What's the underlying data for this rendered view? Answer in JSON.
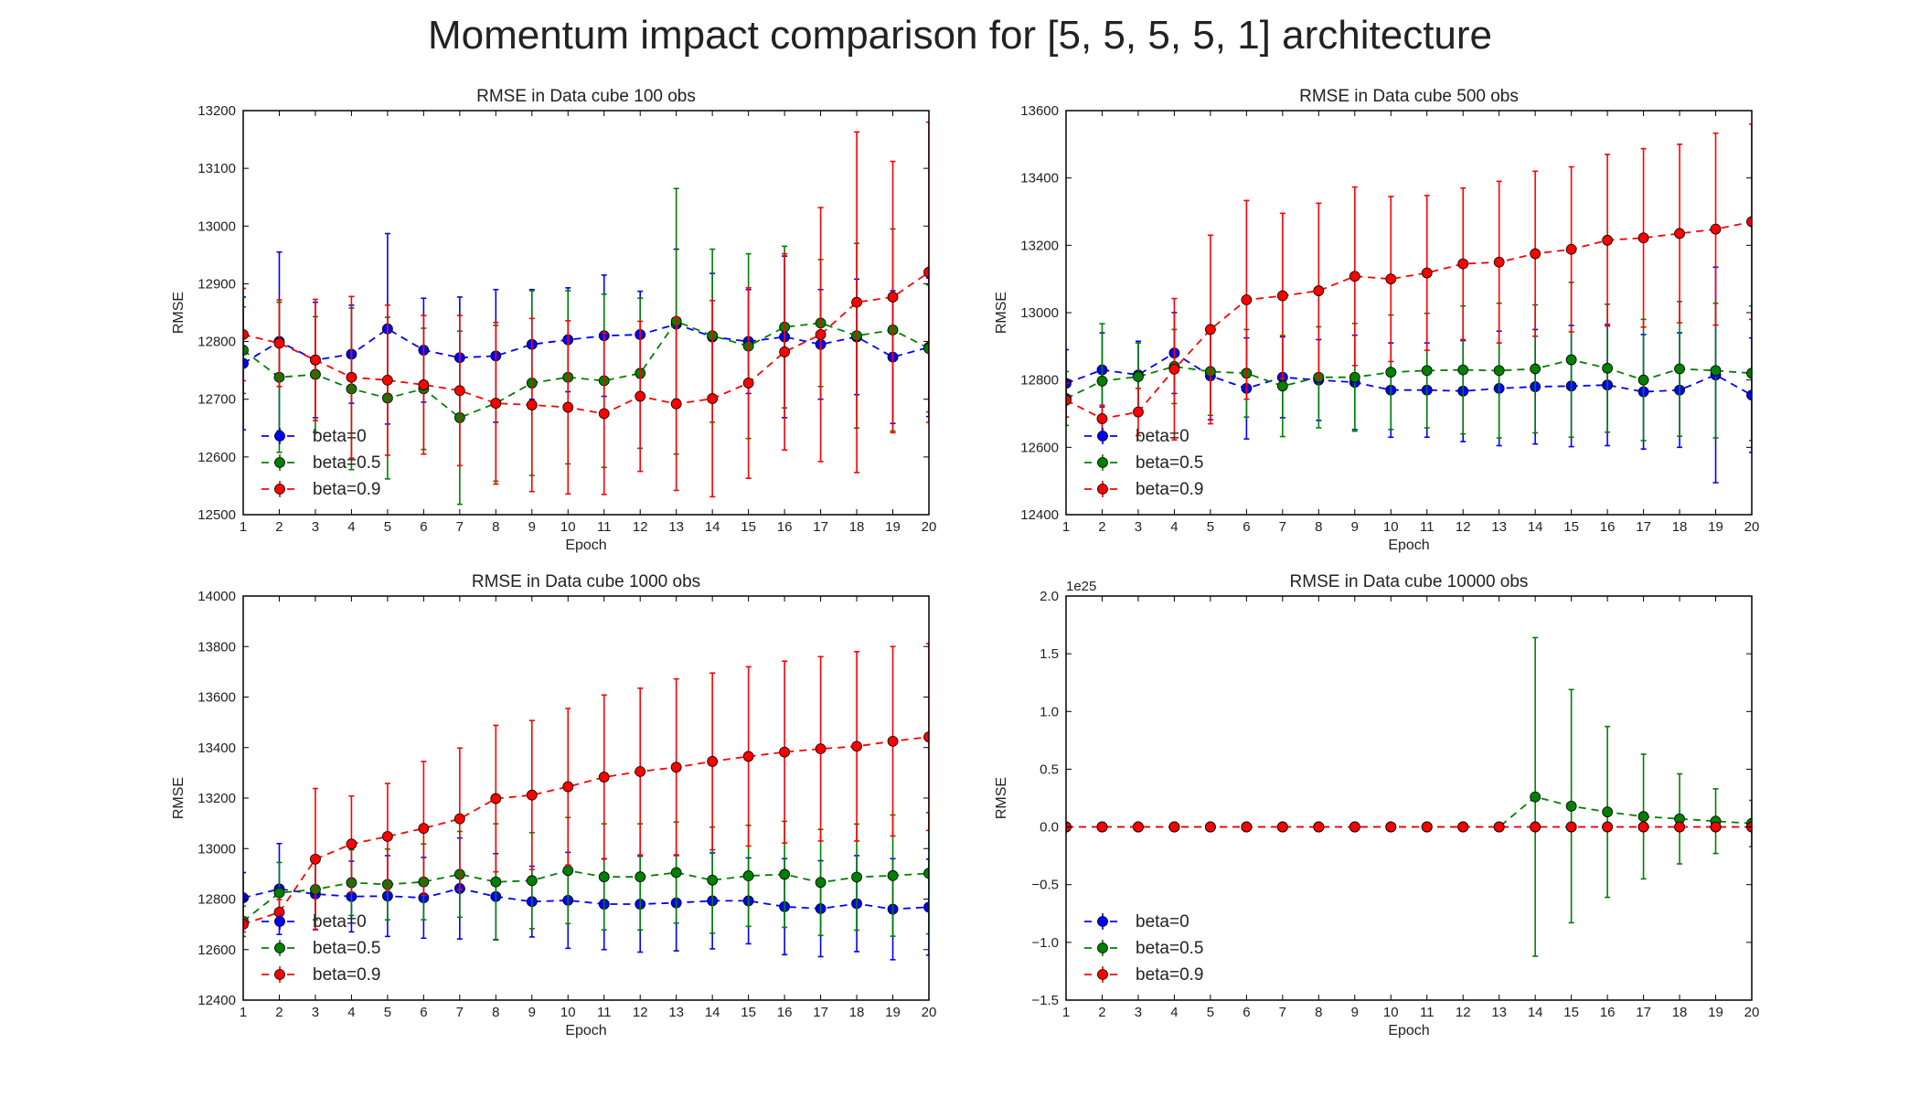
{
  "figure": {
    "title": "Momentum impact comparison for [5, 5, 5, 5, 1] architecture"
  },
  "colors": {
    "beta0": "#0000ff",
    "beta05": "#008000",
    "beta09": "#ff0000"
  },
  "chart_data": [
    {
      "type": "line",
      "title": "RMSE in Data cube 100 obs",
      "xlabel": "Epoch",
      "ylabel": "RMSE",
      "xlim": [
        1,
        20
      ],
      "ylim": [
        12500,
        13200
      ],
      "yticks": [
        12500,
        12600,
        12700,
        12800,
        12900,
        13000,
        13100,
        13200
      ],
      "ytick_labels": [
        "12500",
        "12600",
        "12700",
        "12800",
        "12900",
        "13000",
        "13100",
        "13200"
      ],
      "y_offset_label": "",
      "legend": "lower-left",
      "x": [
        1,
        2,
        3,
        4,
        5,
        6,
        7,
        8,
        9,
        10,
        11,
        12,
        13,
        14,
        15,
        16,
        17,
        18,
        19,
        20
      ],
      "series": [
        {
          "name": "beta=0",
          "color": "#0000ff",
          "values": [
            12762,
            12800,
            12768,
            12778,
            12822,
            12785,
            12772,
            12775,
            12795,
            12803,
            12810,
            12812,
            12830,
            12808,
            12800,
            12808,
            12795,
            12808,
            12773,
            12790
          ],
          "errors": [
            115,
            155,
            100,
            85,
            165,
            90,
            105,
            115,
            95,
            90,
            105,
            75,
            130,
            110,
            90,
            140,
            95,
            100,
            115,
            120
          ]
        },
        {
          "name": "beta=0.5",
          "color": "#008000",
          "values": [
            12785,
            12738,
            12743,
            12718,
            12702,
            12718,
            12668,
            12693,
            12728,
            12738,
            12732,
            12745,
            12835,
            12810,
            12792,
            12825,
            12832,
            12810,
            12820,
            12788
          ],
          "errors": [
            75,
            130,
            100,
            140,
            140,
            105,
            150,
            135,
            160,
            150,
            150,
            130,
            230,
            150,
            160,
            140,
            110,
            160,
            175,
            110
          ]
        },
        {
          "name": "beta=0.9",
          "color": "#ff0000",
          "values": [
            12812,
            12797,
            12768,
            12738,
            12733,
            12725,
            12715,
            12693,
            12690,
            12686,
            12675,
            12705,
            12692,
            12701,
            12728,
            12782,
            12812,
            12868,
            12877,
            12920
          ],
          "errors": [
            80,
            75,
            105,
            140,
            130,
            120,
            130,
            140,
            150,
            150,
            140,
            130,
            150,
            170,
            165,
            170,
            220,
            295,
            235,
            260
          ]
        }
      ]
    },
    {
      "type": "line",
      "title": "RMSE in Data cube 500 obs",
      "xlabel": "Epoch",
      "ylabel": "RMSE",
      "xlim": [
        1,
        20
      ],
      "ylim": [
        12400,
        13600
      ],
      "yticks": [
        12400,
        12600,
        12800,
        13000,
        13200,
        13400,
        13600
      ],
      "ytick_labels": [
        "12400",
        "12600",
        "12800",
        "13000",
        "13200",
        "13400",
        "13600"
      ],
      "y_offset_label": "",
      "legend": "lower-left",
      "x": [
        1,
        2,
        3,
        4,
        5,
        6,
        7,
        8,
        9,
        10,
        11,
        12,
        13,
        14,
        15,
        16,
        17,
        18,
        19,
        20
      ],
      "series": [
        {
          "name": "beta=0",
          "color": "#0000ff",
          "values": [
            12790,
            12830,
            12815,
            12880,
            12812,
            12775,
            12808,
            12800,
            12793,
            12770,
            12770,
            12767,
            12775,
            12780,
            12782,
            12785,
            12765,
            12770,
            12815,
            12755
          ],
          "errors": [
            100,
            110,
            100,
            120,
            130,
            150,
            120,
            120,
            140,
            140,
            140,
            150,
            170,
            170,
            180,
            180,
            170,
            170,
            320,
            170
          ]
        },
        {
          "name": "beta=0.5",
          "color": "#008000",
          "values": [
            12745,
            12797,
            12810,
            12840,
            12825,
            12820,
            12782,
            12808,
            12808,
            12823,
            12828,
            12830,
            12828,
            12833,
            12860,
            12835,
            12800,
            12833,
            12828,
            12820
          ],
          "errors": [
            80,
            170,
            100,
            110,
            130,
            130,
            150,
            150,
            160,
            170,
            170,
            190,
            200,
            190,
            230,
            190,
            180,
            200,
            200,
            200
          ]
        },
        {
          "name": "beta=0.9",
          "color": "#ff0000",
          "values": [
            12740,
            12685,
            12705,
            12832,
            12950,
            13038,
            13050,
            13065,
            13108,
            13100,
            13118,
            13145,
            13150,
            13175,
            13188,
            13215,
            13222,
            13235,
            13248,
            13270
          ],
          "errors": [
            50,
            40,
            70,
            210,
            280,
            295,
            245,
            260,
            265,
            245,
            230,
            225,
            240,
            245,
            245,
            255,
            265,
            265,
            285,
            290
          ]
        }
      ]
    },
    {
      "type": "line",
      "title": "RMSE in Data cube 1000 obs",
      "xlabel": "Epoch",
      "ylabel": "RMSE",
      "xlim": [
        1,
        20
      ],
      "ylim": [
        12400,
        14000
      ],
      "yticks": [
        12400,
        12600,
        12800,
        13000,
        13200,
        13400,
        13600,
        13800,
        14000
      ],
      "ytick_labels": [
        "12400",
        "12600",
        "12800",
        "13000",
        "13200",
        "13400",
        "13600",
        "13800",
        "14000"
      ],
      "y_offset_label": "",
      "legend": "lower-left",
      "x": [
        1,
        2,
        3,
        4,
        5,
        6,
        7,
        8,
        9,
        10,
        11,
        12,
        13,
        14,
        15,
        16,
        17,
        18,
        19,
        20
      ],
      "series": [
        {
          "name": "beta=0",
          "color": "#0000ff",
          "values": [
            12805,
            12840,
            12820,
            12810,
            12812,
            12805,
            12842,
            12810,
            12790,
            12795,
            12780,
            12780,
            12785,
            12793,
            12793,
            12770,
            12762,
            12782,
            12760,
            12768
          ],
          "errors": [
            100,
            180,
            140,
            140,
            160,
            160,
            200,
            170,
            140,
            190,
            180,
            190,
            190,
            190,
            170,
            190,
            190,
            190,
            200,
            190
          ]
        },
        {
          "name": "beta=0.5",
          "color": "#008000",
          "values": [
            12712,
            12825,
            12838,
            12865,
            12858,
            12868,
            12898,
            12868,
            12873,
            12913,
            12888,
            12888,
            12905,
            12875,
            12892,
            12898,
            12866,
            12887,
            12893,
            12902
          ],
          "errors": [
            60,
            120,
            120,
            130,
            140,
            150,
            170,
            230,
            190,
            210,
            210,
            210,
            200,
            210,
            200,
            210,
            210,
            210,
            240,
            240
          ]
        },
        {
          "name": "beta=0.9",
          "color": "#ff0000",
          "values": [
            12700,
            12748,
            12958,
            13018,
            13048,
            13080,
            13118,
            13198,
            13212,
            13245,
            13283,
            13305,
            13322,
            13345,
            13365,
            13382,
            13395,
            13405,
            13425,
            13442
          ],
          "errors": [
            30,
            50,
            280,
            190,
            210,
            265,
            280,
            290,
            295,
            310,
            325,
            330,
            350,
            350,
            355,
            360,
            365,
            375,
            375,
            370
          ]
        }
      ]
    },
    {
      "type": "line",
      "title": "RMSE in Data cube 10000 obs",
      "xlabel": "Epoch",
      "ylabel": "RMSE",
      "xlim": [
        1,
        20
      ],
      "ylim": [
        -1.5,
        2.0
      ],
      "yticks": [
        -1.5,
        -1.0,
        -0.5,
        0.0,
        0.5,
        1.0,
        1.5,
        2.0
      ],
      "ytick_labels": [
        "−1.5",
        "−1.0",
        "−0.5",
        "0.0",
        "0.5",
        "1.0",
        "1.5",
        "2.0"
      ],
      "y_offset_label": "1e25",
      "legend": "lower-left",
      "x": [
        1,
        2,
        3,
        4,
        5,
        6,
        7,
        8,
        9,
        10,
        11,
        12,
        13,
        14,
        15,
        16,
        17,
        18,
        19,
        20
      ],
      "series": [
        {
          "name": "beta=0",
          "color": "#0000ff",
          "values": [
            0,
            0,
            0,
            0,
            0,
            0,
            0,
            0,
            0,
            0,
            0,
            0,
            0,
            0,
            0,
            0,
            0,
            0,
            0,
            0
          ],
          "errors": [
            0,
            0,
            0,
            0,
            0,
            0,
            0,
            0,
            0,
            0,
            0,
            0,
            0,
            0,
            0,
            0,
            0,
            0,
            0,
            0
          ]
        },
        {
          "name": "beta=0.5",
          "color": "#008000",
          "values": [
            0,
            0,
            0,
            0,
            0,
            0,
            0,
            0,
            0,
            0,
            0,
            0,
            0,
            0.26,
            0.18,
            0.13,
            0.09,
            0.07,
            0.05,
            0.03
          ],
          "errors": [
            0,
            0,
            0,
            0,
            0,
            0,
            0,
            0,
            0,
            0,
            0,
            0,
            0,
            1.38,
            1.01,
            0.74,
            0.54,
            0.39,
            0.28,
            0.2
          ]
        },
        {
          "name": "beta=0.9",
          "color": "#ff0000",
          "values": [
            0,
            0,
            0,
            0,
            0,
            0,
            0,
            0,
            0,
            0,
            0,
            0,
            0,
            0,
            0,
            0,
            0,
            0,
            0,
            0
          ],
          "errors": [
            0,
            0,
            0,
            0,
            0,
            0,
            0,
            0,
            0,
            0,
            0,
            0,
            0,
            0,
            0,
            0,
            0,
            0,
            0,
            0
          ]
        }
      ]
    }
  ]
}
